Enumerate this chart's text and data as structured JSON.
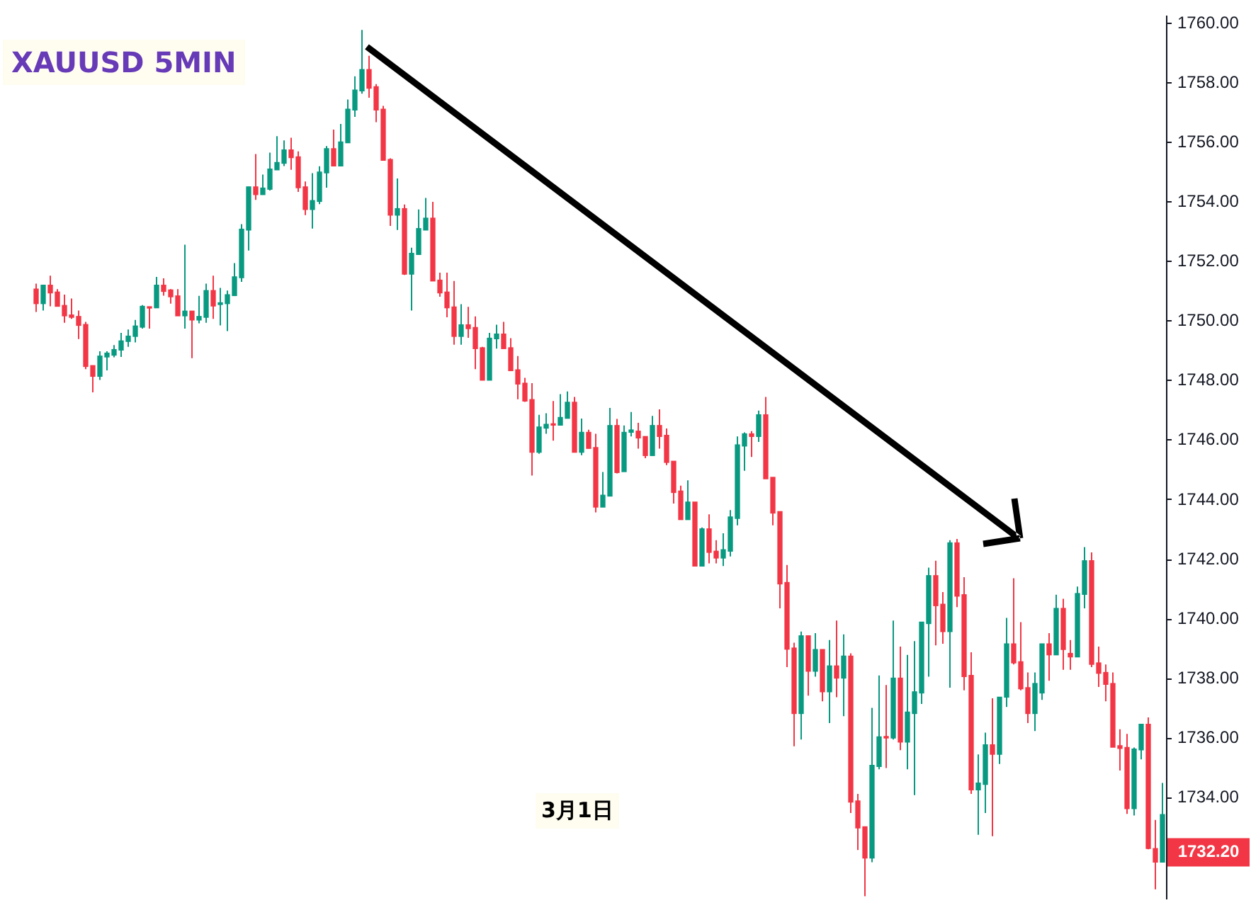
{
  "chart_data": {
    "type": "candlestick",
    "title": "XAUUSD 5MIN",
    "categories": [
      null,
      null,
      null,
      null,
      null,
      null,
      null,
      null,
      null,
      null,
      null,
      null,
      null,
      null,
      null,
      null,
      null,
      null,
      null,
      null,
      null,
      null,
      null,
      null,
      null,
      null,
      null,
      null,
      null,
      null,
      null,
      null,
      null,
      null,
      null,
      null,
      null,
      null,
      null,
      null,
      null,
      null,
      null,
      null,
      null,
      null,
      null,
      null,
      null,
      null,
      null,
      null,
      null,
      null,
      null,
      null,
      null,
      null,
      null,
      null,
      null,
      null,
      null,
      null,
      null,
      null,
      null,
      null,
      null,
      null,
      null,
      null,
      null,
      null,
      null,
      null,
      null,
      null,
      null,
      null,
      null,
      null,
      null,
      null,
      null,
      null,
      null,
      null,
      null,
      null,
      null,
      null,
      null,
      null,
      null,
      null,
      null,
      null,
      null,
      null,
      null,
      null,
      null,
      null,
      null,
      null,
      null,
      null,
      null,
      null,
      null,
      null,
      null,
      null,
      null,
      null,
      null,
      null,
      null,
      null,
      null,
      null,
      null,
      null,
      null,
      null,
      null,
      null,
      null,
      null,
      null,
      null,
      null,
      null,
      null,
      null,
      null,
      null,
      null,
      null,
      null,
      null,
      null,
      null,
      null,
      null,
      null,
      null,
      null,
      null,
      null,
      null,
      null,
      null,
      null,
      null,
      null,
      null,
      null,
      null
    ],
    "ohlc": [
      [
        1751.08,
        1751.26,
        1750.31,
        1750.59
      ],
      [
        1750.59,
        1751.21,
        1750.36,
        1751.21
      ],
      [
        1751.21,
        1751.53,
        1750.5,
        1750.95
      ],
      [
        1750.98,
        1751.08,
        1750.5,
        1750.5
      ],
      [
        1750.53,
        1750.89,
        1749.95,
        1750.18
      ],
      [
        1750.21,
        1750.76,
        1750.08,
        1750.13
      ],
      [
        1750.16,
        1750.36,
        1749.4,
        1749.86
      ],
      [
        1749.89,
        1749.98,
        1748.39,
        1748.48
      ],
      [
        1748.51,
        1748.51,
        1747.61,
        1748.15
      ],
      [
        1748.15,
        1748.99,
        1748.03,
        1748.83
      ],
      [
        1748.8,
        1748.99,
        1748.35,
        1748.93
      ],
      [
        1748.86,
        1749.2,
        1748.79,
        1749.05
      ],
      [
        1749.03,
        1749.61,
        1748.8,
        1749.34
      ],
      [
        1749.32,
        1749.72,
        1749.14,
        1749.5
      ],
      [
        1749.49,
        1750.04,
        1749.29,
        1749.84
      ],
      [
        1749.8,
        1750.54,
        1749.75,
        1750.5
      ],
      [
        1750.47,
        1750.47,
        1749.75,
        1750.44
      ],
      [
        1750.45,
        1751.49,
        1750.45,
        1751.21
      ],
      [
        1751.21,
        1751.44,
        1750.86,
        1751.0
      ],
      [
        1751.05,
        1751.08,
        1750.59,
        1750.82
      ],
      [
        1750.85,
        1751.08,
        1750.18,
        1750.18
      ],
      [
        1750.18,
        1752.57,
        1749.75,
        1750.34
      ],
      [
        1750.34,
        1750.34,
        1748.76,
        1750.04
      ],
      [
        1750.04,
        1750.85,
        1749.93,
        1750.16
      ],
      [
        1750.13,
        1751.26,
        1749.95,
        1751.03
      ],
      [
        1751.03,
        1751.53,
        1750.08,
        1750.51
      ],
      [
        1750.56,
        1751.12,
        1749.86,
        1750.62
      ],
      [
        1750.59,
        1751.03,
        1749.67,
        1750.89
      ],
      [
        1750.86,
        1751.95,
        1750.86,
        1751.49
      ],
      [
        1751.46,
        1753.26,
        1751.32,
        1753.09
      ],
      [
        1753.06,
        1754.51,
        1752.37,
        1754.51
      ],
      [
        1754.51,
        1755.61,
        1754.07,
        1754.25
      ],
      [
        1754.25,
        1754.92,
        1754.25,
        1754.47
      ],
      [
        1754.43,
        1755.66,
        1754.39,
        1755.11
      ],
      [
        1755.08,
        1756.21,
        1755.08,
        1755.33
      ],
      [
        1755.3,
        1756.07,
        1755.21,
        1755.75
      ],
      [
        1755.75,
        1756.16,
        1755.08,
        1755.49
      ],
      [
        1755.52,
        1755.7,
        1754.34,
        1754.48
      ],
      [
        1754.51,
        1754.69,
        1753.56,
        1753.75
      ],
      [
        1753.75,
        1754.97,
        1753.11,
        1754.05
      ],
      [
        1754.02,
        1755.2,
        1753.93,
        1755.01
      ],
      [
        1754.98,
        1755.88,
        1754.48,
        1755.79
      ],
      [
        1755.79,
        1756.43,
        1755.21,
        1755.21
      ],
      [
        1755.21,
        1756.62,
        1755.21,
        1756.02
      ],
      [
        1755.99,
        1757.44,
        1755.99,
        1757.12
      ],
      [
        1757.09,
        1758.22,
        1756.86,
        1757.76
      ],
      [
        1757.73,
        1759.78,
        1757.64,
        1758.45
      ],
      [
        1758.45,
        1758.91,
        1757.5,
        1757.82
      ],
      [
        1757.87,
        1757.96,
        1756.68,
        1757.09
      ],
      [
        1757.12,
        1757.23,
        1755.4,
        1755.4
      ],
      [
        1755.43,
        1755.47,
        1753.2,
        1753.56
      ],
      [
        1753.56,
        1754.79,
        1753.06,
        1753.78
      ],
      [
        1753.78,
        1753.92,
        1751.55,
        1751.58
      ],
      [
        1751.58,
        1752.47,
        1750.36,
        1752.28
      ],
      [
        1752.24,
        1753.75,
        1752.24,
        1753.11
      ],
      [
        1753.06,
        1754.14,
        1753.06,
        1753.46
      ],
      [
        1753.46,
        1754.01,
        1751.35,
        1751.35
      ],
      [
        1751.38,
        1751.63,
        1750.82,
        1750.95
      ],
      [
        1750.98,
        1751.63,
        1750.13,
        1750.45
      ],
      [
        1750.48,
        1751.35,
        1749.21,
        1749.49
      ],
      [
        1749.49,
        1750.57,
        1749.21,
        1749.88
      ],
      [
        1749.88,
        1750.48,
        1749.44,
        1749.75
      ],
      [
        1749.79,
        1750.16,
        1748.39,
        1749.08
      ],
      [
        1749.11,
        1749.14,
        1748.02,
        1748.02
      ],
      [
        1748.02,
        1749.61,
        1748.02,
        1749.43
      ],
      [
        1749.41,
        1749.88,
        1749.08,
        1749.57
      ],
      [
        1749.57,
        1749.98,
        1749.08,
        1749.08
      ],
      [
        1749.11,
        1749.43,
        1748.34,
        1748.34
      ],
      [
        1748.37,
        1748.83,
        1747.38,
        1747.89
      ],
      [
        1747.92,
        1748.1,
        1747.29,
        1747.32
      ],
      [
        1747.37,
        1747.92,
        1744.82,
        1745.6
      ],
      [
        1745.6,
        1746.86,
        1745.55,
        1746.45
      ],
      [
        1746.41,
        1746.91,
        1746.22,
        1746.54
      ],
      [
        1746.54,
        1747.32,
        1745.99,
        1746.51
      ],
      [
        1746.51,
        1747.55,
        1746.51,
        1746.77
      ],
      [
        1746.74,
        1747.64,
        1746.74,
        1747.28
      ],
      [
        1747.28,
        1747.46,
        1745.6,
        1745.6
      ],
      [
        1745.6,
        1746.73,
        1745.5,
        1746.27
      ],
      [
        1746.27,
        1746.36,
        1745.73,
        1745.73
      ],
      [
        1745.76,
        1746.22,
        1743.58,
        1743.76
      ],
      [
        1743.76,
        1744.94,
        1743.76,
        1744.16
      ],
      [
        1744.13,
        1747.09,
        1744.13,
        1746.5
      ],
      [
        1746.5,
        1746.72,
        1744.89,
        1744.92
      ],
      [
        1744.95,
        1746.5,
        1744.95,
        1746.27
      ],
      [
        1746.27,
        1746.95,
        1746.13,
        1746.35
      ],
      [
        1746.31,
        1746.59,
        1745.72,
        1746.08
      ],
      [
        1746.13,
        1746.13,
        1745.4,
        1745.49
      ],
      [
        1745.49,
        1746.82,
        1745.49,
        1746.5
      ],
      [
        1746.5,
        1747.04,
        1745.72,
        1746.13
      ],
      [
        1746.17,
        1746.4,
        1745.17,
        1745.26
      ],
      [
        1745.3,
        1745.3,
        1743.88,
        1744.25
      ],
      [
        1744.3,
        1744.48,
        1743.34,
        1743.34
      ],
      [
        1743.34,
        1744.66,
        1743.34,
        1743.93
      ],
      [
        1743.93,
        1743.93,
        1741.78,
        1741.78
      ],
      [
        1741.78,
        1743.08,
        1741.78,
        1743.03
      ],
      [
        1743.03,
        1743.52,
        1741.87,
        1742.24
      ],
      [
        1742.28,
        1742.65,
        1741.87,
        1742.05
      ],
      [
        1742.05,
        1742.88,
        1741.78,
        1742.33
      ],
      [
        1742.28,
        1743.66,
        1742.1,
        1743.43
      ],
      [
        1743.38,
        1746.13,
        1743.15,
        1745.85
      ],
      [
        1745.81,
        1746.27,
        1744.98,
        1746.22
      ],
      [
        1746.22,
        1746.31,
        1745.44,
        1746.13
      ],
      [
        1746.13,
        1747.0,
        1745.95,
        1746.86
      ],
      [
        1746.86,
        1747.46,
        1744.71,
        1744.71
      ],
      [
        1744.76,
        1744.76,
        1743.15,
        1743.56
      ],
      [
        1743.61,
        1743.61,
        1740.36,
        1741.18
      ],
      [
        1741.23,
        1741.82,
        1738.39,
        1738.99
      ],
      [
        1739.03,
        1739.21,
        1735.73,
        1736.83
      ],
      [
        1736.83,
        1739.58,
        1735.96,
        1739.44
      ],
      [
        1739.44,
        1739.44,
        1737.43,
        1738.25
      ],
      [
        1738.25,
        1739.53,
        1738.07,
        1738.98
      ],
      [
        1738.98,
        1738.98,
        1737.24,
        1737.56
      ],
      [
        1737.56,
        1739.3,
        1736.51,
        1738.43
      ],
      [
        1738.43,
        1739.95,
        1737.38,
        1738.02
      ],
      [
        1738.02,
        1739.49,
        1736.74,
        1738.76
      ],
      [
        1738.76,
        1738.85,
        1733.49,
        1733.86
      ],
      [
        1733.9,
        1734.13,
        1732.25,
        1732.99
      ],
      [
        1733.03,
        1733.03,
        1730.7,
        1731.98
      ],
      [
        1731.98,
        1737.02,
        1731.84,
        1735.09
      ],
      [
        1735.05,
        1738.11,
        1734.96,
        1736.05
      ],
      [
        1736.05,
        1737.79,
        1735.0,
        1736.01
      ],
      [
        1736.01,
        1739.95,
        1735.96,
        1738.02
      ],
      [
        1738.02,
        1739.08,
        1735.6,
        1735.87
      ],
      [
        1735.87,
        1738.8,
        1734.96,
        1736.88
      ],
      [
        1736.83,
        1739.26,
        1734.09,
        1737.56
      ],
      [
        1737.52,
        1739.9,
        1737.15,
        1739.9
      ],
      [
        1739.85,
        1741.73,
        1738.07,
        1741.46
      ],
      [
        1741.46,
        1741.96,
        1739.12,
        1740.45
      ],
      [
        1740.5,
        1740.91,
        1739.17,
        1739.58
      ],
      [
        1739.58,
        1742.65,
        1737.7,
        1742.56
      ],
      [
        1742.56,
        1742.69,
        1740.4,
        1740.77
      ],
      [
        1740.82,
        1741.41,
        1737.61,
        1738.07
      ],
      [
        1738.11,
        1738.89,
        1734.13,
        1734.27
      ],
      [
        1734.27,
        1735.46,
        1732.76,
        1734.5
      ],
      [
        1734.45,
        1736.19,
        1733.49,
        1735.78
      ],
      [
        1735.78,
        1737.34,
        1732.71,
        1735.46
      ],
      [
        1735.46,
        1737.38,
        1735.14,
        1737.38
      ],
      [
        1737.38,
        1740.04,
        1737.05,
        1739.17
      ],
      [
        1739.17,
        1741.37,
        1738.48,
        1738.53
      ],
      [
        1738.57,
        1739.9,
        1737.61,
        1737.66
      ],
      [
        1737.7,
        1738.21,
        1736.51,
        1736.83
      ],
      [
        1736.83,
        1738.21,
        1736.24,
        1737.84
      ],
      [
        1737.52,
        1739.17,
        1737.29,
        1739.17
      ],
      [
        1739.17,
        1739.53,
        1737.93,
        1738.8
      ],
      [
        1738.8,
        1740.82,
        1738.8,
        1740.36
      ],
      [
        1740.36,
        1740.68,
        1738.3,
        1738.98
      ],
      [
        1738.85,
        1739.3,
        1738.3,
        1738.73
      ],
      [
        1738.73,
        1741.09,
        1738.73,
        1740.86
      ],
      [
        1740.83,
        1742.42,
        1740.36,
        1741.96
      ],
      [
        1741.96,
        1742.24,
        1738.39,
        1738.48
      ],
      [
        1738.53,
        1739.08,
        1737.72,
        1738.18
      ],
      [
        1738.21,
        1738.48,
        1737.24,
        1737.81
      ],
      [
        1737.84,
        1738.21,
        1735.7,
        1735.7
      ],
      [
        1735.75,
        1736.3,
        1734.92,
        1735.66
      ],
      [
        1735.69,
        1736.15,
        1733.46,
        1733.64
      ],
      [
        1733.64,
        1735.69,
        1733.41,
        1735.64
      ],
      [
        1735.61,
        1736.47,
        1735.29,
        1736.47
      ],
      [
        1736.47,
        1736.7,
        1732.27,
        1732.3
      ],
      [
        1732.3,
        1733.26,
        1730.93,
        1731.84
      ],
      [
        1731.84,
        1734.5,
        1731.84,
        1733.44
      ]
    ],
    "colors": [
      "#f23645",
      "#089981",
      "#f23645",
      "#f23645",
      "#f23645",
      "#f23645",
      "#f23645",
      "#f23645",
      "#f23645",
      "#089981",
      "#089981",
      "#089981",
      "#089981",
      "#089981",
      "#089981",
      "#089981",
      "#f23645",
      "#089981",
      "#f23645",
      "#f23645",
      "#f23645",
      "#089981",
      "#f23645",
      "#089981",
      "#089981",
      "#f23645",
      "#089981",
      "#089981",
      "#089981",
      "#089981",
      "#089981",
      "#f23645",
      "#089981",
      "#089981",
      "#089981",
      "#089981",
      "#f23645",
      "#f23645",
      "#f23645",
      "#089981",
      "#089981",
      "#089981",
      "#f23645",
      "#089981",
      "#089981",
      "#089981",
      "#089981",
      "#f23645",
      "#f23645",
      "#f23645",
      "#f23645",
      "#089981",
      "#f23645",
      "#089981",
      "#089981",
      "#089981",
      "#f23645",
      "#f23645",
      "#f23645",
      "#f23645",
      "#089981",
      "#f23645",
      "#f23645",
      "#f23645",
      "#089981",
      "#089981",
      "#f23645",
      "#f23645",
      "#f23645",
      "#f23645",
      "#f23645",
      "#089981",
      "#089981",
      "#f23645",
      "#089981",
      "#089981",
      "#f23645",
      "#089981",
      "#f23645",
      "#f23645",
      "#089981",
      "#089981",
      "#f23645",
      "#089981",
      "#089981",
      "#f23645",
      "#f23645",
      "#089981",
      "#f23645",
      "#f23645",
      "#f23645",
      "#f23645",
      "#089981",
      "#f23645",
      "#089981",
      "#f23645",
      "#f23645",
      "#089981",
      "#089981",
      "#089981",
      "#089981",
      "#f23645",
      "#089981",
      "#f23645",
      "#f23645",
      "#f23645",
      "#f23645",
      "#f23645",
      "#089981",
      "#f23645",
      "#089981",
      "#f23645",
      "#089981",
      "#f23645",
      "#089981",
      "#f23645",
      "#f23645",
      "#f23645",
      "#089981",
      "#089981",
      "#f23645",
      "#089981",
      "#f23645",
      "#089981",
      "#089981",
      "#089981",
      "#089981",
      "#f23645",
      "#f23645",
      "#089981",
      "#f23645",
      "#f23645",
      "#f23645",
      "#089981",
      "#089981",
      "#f23645",
      "#089981",
      "#089981",
      "#f23645",
      "#f23645",
      "#f23645",
      "#089981",
      "#089981",
      "#f23645",
      "#089981",
      "#f23645",
      "#f23645",
      "#089981",
      "#089981",
      "#f23645",
      "#f23645",
      "#f23645",
      "#f23645",
      "#f23645",
      "#f23645",
      "#089981",
      "#089981",
      "#f23645",
      "#f23645",
      "#089981"
    ],
    "ylim": [
      1730.6,
      1760.25
    ],
    "yticks": [
      {
        "value": 1734,
        "label": "1734.00"
      },
      {
        "value": 1736,
        "label": "1736.00"
      },
      {
        "value": 1738,
        "label": "1738.00"
      },
      {
        "value": 1740,
        "label": "1740.00"
      },
      {
        "value": 1742,
        "label": "1742.00"
      },
      {
        "value": 1744,
        "label": "1744.00"
      },
      {
        "value": 1746,
        "label": "1746.00"
      },
      {
        "value": 1748,
        "label": "1748.00"
      },
      {
        "value": 1750,
        "label": "1750.00"
      },
      {
        "value": 1752,
        "label": "1752.00"
      },
      {
        "value": 1754,
        "label": "1754.00"
      },
      {
        "value": 1756,
        "label": "1756.00"
      },
      {
        "value": 1758,
        "label": "1758.00"
      },
      {
        "value": 1760,
        "label": "1760.00"
      }
    ],
    "tick_labels": "y",
    "grid": false,
    "legend": false,
    "annotations": [
      "3月1日",
      "1732.20"
    ]
  }
}
